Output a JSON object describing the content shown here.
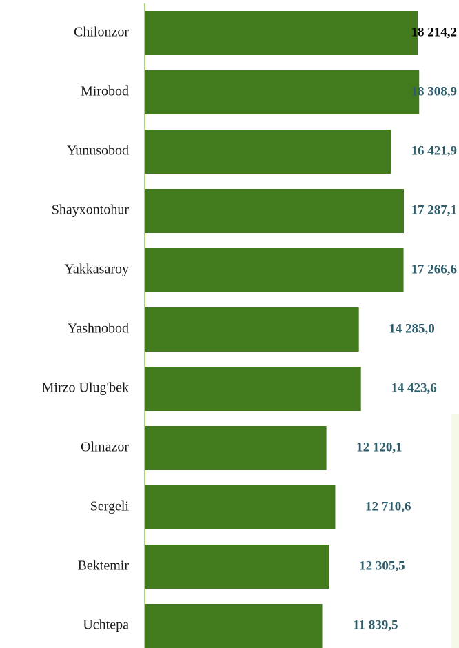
{
  "chart_data": {
    "type": "bar",
    "orientation": "horizontal",
    "categories": [
      "Chilonzor",
      "Mirobod",
      "Yunusobod",
      "Shayxontohur",
      "Yakkasaroy",
      "Yashnobod",
      "Mirzo Ulug'bek",
      "Olmazor",
      "Sergeli",
      "Bektemir",
      "Uchtepa"
    ],
    "values": [
      18214.2,
      18308.9,
      16421.9,
      17287.1,
      17266.6,
      14285.0,
      14423.6,
      12120.1,
      12710.6,
      12305.5,
      11839.5
    ],
    "value_labels": [
      "18 214,2",
      "18  308,9",
      "16  421,9",
      "17 287,1",
      "17 266,6",
      "14 285,0",
      "14 423,6",
      "12 120,1",
      "12 710,6",
      "12 305,5",
      "11 839,5"
    ],
    "color": "#437a1e",
    "xlim": [
      0,
      20000
    ]
  }
}
